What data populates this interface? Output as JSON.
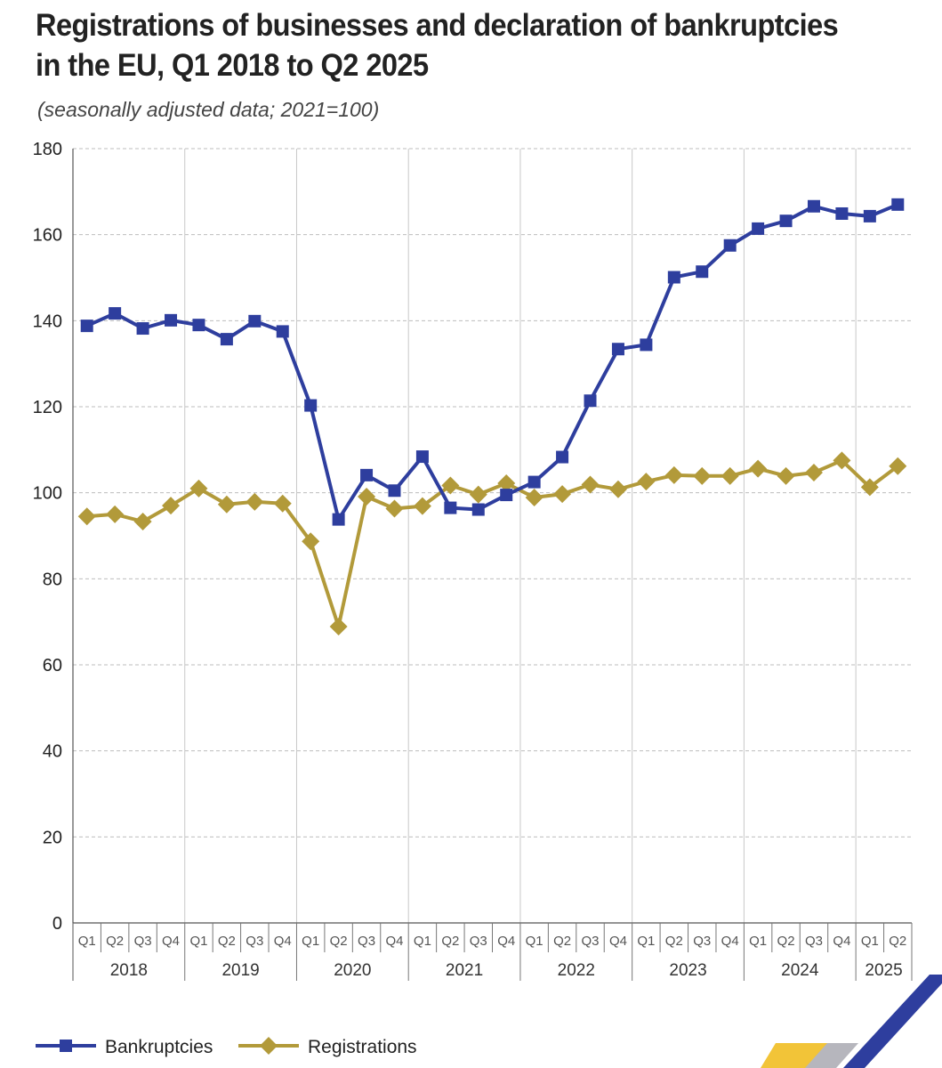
{
  "chart_data": {
    "type": "line",
    "title": "Registrations of businesses and declaration of bankruptcies in the EU, Q1 2018 to Q2 2025",
    "subtitle": "(seasonally adjusted data; 2021=100)",
    "x": [
      "Q1 2018",
      "Q2 2018",
      "Q3 2018",
      "Q4 2018",
      "Q1 2019",
      "Q2 2019",
      "Q3 2019",
      "Q4 2019",
      "Q1 2020",
      "Q2 2020",
      "Q3 2020",
      "Q4 2020",
      "Q1 2021",
      "Q2 2021",
      "Q3 2021",
      "Q4 2021",
      "Q1 2022",
      "Q2 2022",
      "Q3 2022",
      "Q4 2022",
      "Q1 2023",
      "Q2 2023",
      "Q3 2023",
      "Q4 2023",
      "Q1 2024",
      "Q2 2024",
      "Q3 2024",
      "Q4 2024",
      "Q1 2025",
      "Q2 2025"
    ],
    "quarter_labels": [
      "Q1",
      "Q2",
      "Q3",
      "Q4",
      "Q1",
      "Q2",
      "Q3",
      "Q4",
      "Q1",
      "Q2",
      "Q3",
      "Q4",
      "Q1",
      "Q2",
      "Q3",
      "Q4",
      "Q1",
      "Q2",
      "Q3",
      "Q4",
      "Q1",
      "Q2",
      "Q3",
      "Q4",
      "Q1",
      "Q2",
      "Q3",
      "Q4",
      "Q1",
      "Q2"
    ],
    "years": [
      "2018",
      "2019",
      "2020",
      "2021",
      "2022",
      "2023",
      "2024",
      "2025"
    ],
    "series": [
      {
        "name": "Bankruptcies",
        "color": "#2e3e9e",
        "marker": "square",
        "values": [
          138.8,
          141.7,
          138.2,
          140.1,
          139.0,
          135.7,
          139.9,
          137.5,
          120.3,
          93.8,
          104.1,
          100.5,
          108.4,
          96.5,
          96.1,
          99.5,
          102.5,
          108.3,
          121.4,
          133.4,
          134.4,
          150.1,
          151.4,
          157.5,
          161.4,
          163.2,
          166.6,
          164.9,
          164.3,
          167.0
        ]
      },
      {
        "name": "Registrations",
        "color": "#b29a3a",
        "marker": "diamond",
        "values": [
          94.5,
          95.0,
          93.3,
          97.0,
          101.0,
          97.3,
          97.9,
          97.5,
          88.7,
          68.9,
          99.1,
          96.3,
          96.9,
          101.7,
          99.6,
          102.2,
          98.9,
          99.7,
          101.9,
          100.8,
          102.6,
          104.1,
          103.9,
          103.9,
          105.6,
          103.9,
          104.7,
          107.5,
          101.3,
          106.2
        ]
      }
    ],
    "y_ticks": [
      0,
      20,
      40,
      60,
      80,
      100,
      120,
      140,
      160,
      180
    ],
    "ylim": [
      0,
      180
    ],
    "grid": "horizontal dashed",
    "legend_position": "bottom-left"
  }
}
